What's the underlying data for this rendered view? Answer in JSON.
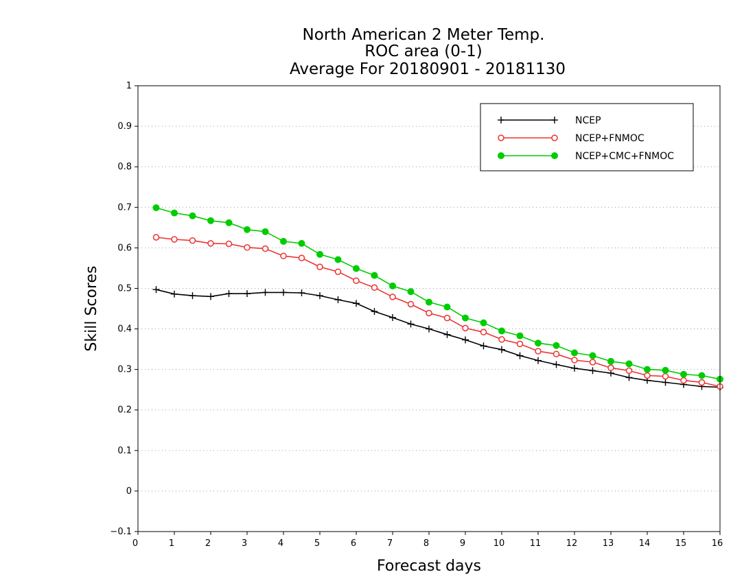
{
  "chart_data": {
    "type": "line",
    "title_lines": [
      "North American 2 Meter Temp.",
      "ROC area (0-1)",
      "Average For 20180901 - 20181130"
    ],
    "xlabel": "Forecast days",
    "ylabel": "Skill Scores",
    "xlim": [
      0,
      16
    ],
    "ylim": [
      -0.1,
      1
    ],
    "x_ticks": [
      "0",
      "1",
      "2",
      "3",
      "4",
      "5",
      "6",
      "7",
      "8",
      "9",
      "10",
      "11",
      "12",
      "13",
      "14",
      "15",
      "16"
    ],
    "y_ticks": [
      "−0.1",
      "0",
      "0.1",
      "0.2",
      "0.3",
      "0.4",
      "0.5",
      "0.6",
      "0.7",
      "0.8",
      "0.9",
      "1"
    ],
    "grid": "horizontal dotted",
    "legend_position": "top-right",
    "x": [
      0.5,
      1,
      1.5,
      2,
      2.5,
      3,
      3.5,
      4,
      4.5,
      5,
      5.5,
      6,
      6.5,
      7,
      7.5,
      8,
      8.5,
      9,
      9.5,
      10,
      10.5,
      11,
      11.5,
      12,
      12.5,
      13,
      13.5,
      14,
      14.5,
      15,
      15.5,
      16
    ],
    "series": [
      {
        "name": "NCEP",
        "color": "#000000",
        "marker": "plus",
        "values": [
          0.497,
          0.486,
          0.482,
          0.48,
          0.487,
          0.487,
          0.49,
          0.49,
          0.489,
          0.482,
          0.472,
          0.463,
          0.443,
          0.428,
          0.412,
          0.4,
          0.386,
          0.373,
          0.358,
          0.349,
          0.334,
          0.322,
          0.312,
          0.303,
          0.297,
          0.291,
          0.28,
          0.273,
          0.268,
          0.263,
          0.258,
          0.256
        ]
      },
      {
        "name": "NCEP+FNMOC",
        "color": "#ee3030",
        "marker": "open-circle",
        "values": [
          0.626,
          0.621,
          0.618,
          0.611,
          0.61,
          0.601,
          0.598,
          0.58,
          0.575,
          0.553,
          0.541,
          0.519,
          0.502,
          0.479,
          0.461,
          0.439,
          0.427,
          0.402,
          0.392,
          0.374,
          0.363,
          0.345,
          0.338,
          0.323,
          0.318,
          0.304,
          0.297,
          0.285,
          0.283,
          0.273,
          0.268,
          0.258
        ]
      },
      {
        "name": "NCEP+CMC+FNMOC",
        "color": "#00cc00",
        "marker": "filled-circle",
        "values": [
          0.699,
          0.686,
          0.679,
          0.667,
          0.662,
          0.645,
          0.64,
          0.616,
          0.611,
          0.584,
          0.571,
          0.549,
          0.532,
          0.506,
          0.492,
          0.466,
          0.454,
          0.427,
          0.415,
          0.395,
          0.383,
          0.365,
          0.359,
          0.341,
          0.334,
          0.32,
          0.314,
          0.3,
          0.298,
          0.288,
          0.285,
          0.276
        ]
      }
    ]
  }
}
